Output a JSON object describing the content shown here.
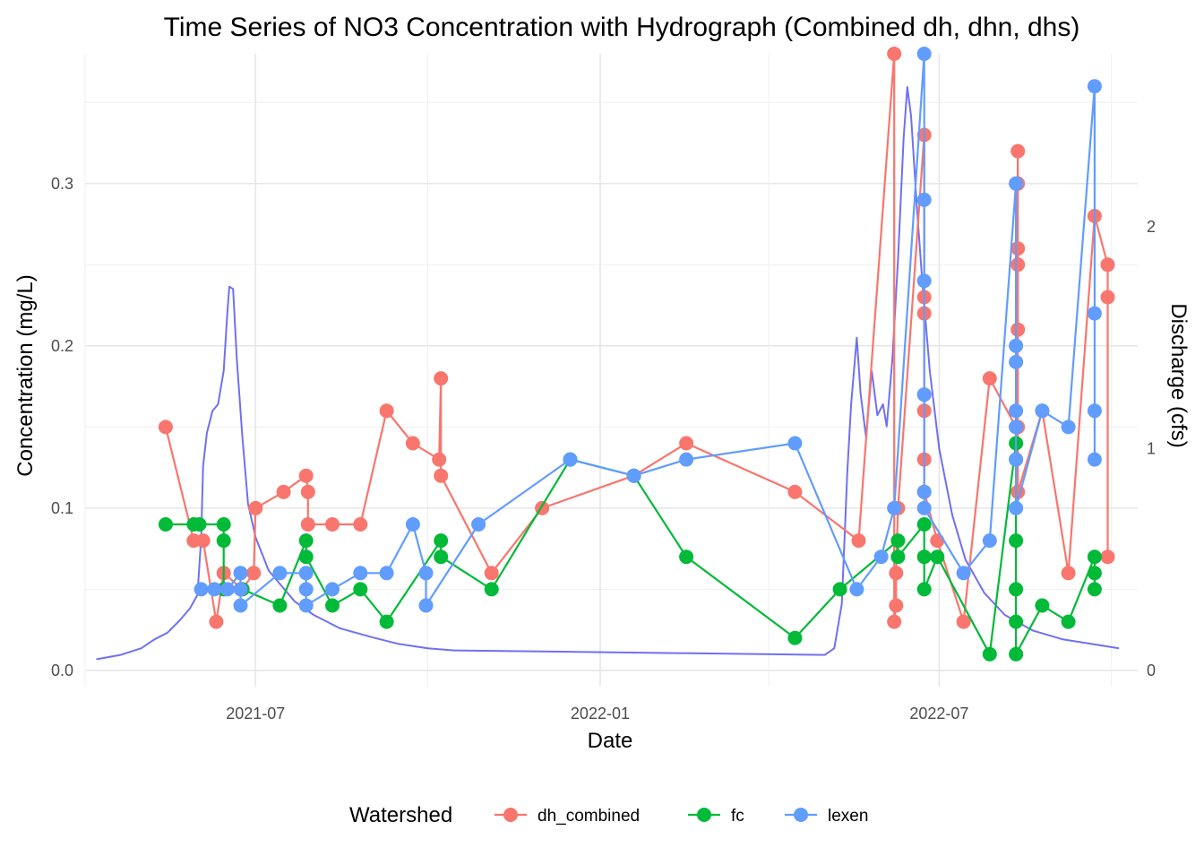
{
  "chart_data": {
    "type": "line",
    "title": "Time Series of NO3 Concentration with Hydrograph (Combined dh, dhn, dhs)",
    "xlabel": "Date",
    "ylabel": "Concentration (mg/L)",
    "y2label": "Discharge (cfs)",
    "x_ticks": [
      "2021-07",
      "2022-01",
      "2022-07"
    ],
    "xlim": [
      "2021-04-01",
      "2022-10-15"
    ],
    "ylim": [
      -0.01,
      0.38
    ],
    "y_ticks": [
      0.0,
      0.1,
      0.2,
      0.3
    ],
    "y_tick_labels": [
      "0.0",
      "0.1",
      "0.2",
      "0.3"
    ],
    "y2lim": [
      0,
      2.78
    ],
    "y2_ticks": [
      0,
      1,
      2
    ],
    "y2_tick_labels": [
      "0",
      "1",
      "2"
    ],
    "grid": true,
    "legend": {
      "title": "Watershed",
      "placement": "bottom"
    },
    "series": [
      {
        "name": "dh_combined",
        "color": "#F8766D",
        "points": [
          [
            "2021-05-14",
            0.15
          ],
          [
            "2021-05-29",
            0.08
          ],
          [
            "2021-06-03",
            0.08
          ],
          [
            "2021-06-10",
            0.03
          ],
          [
            "2021-06-14",
            0.06
          ],
          [
            "2021-06-24",
            0.05
          ],
          [
            "2021-06-30",
            0.06
          ],
          [
            "2021-07-01",
            0.1
          ],
          [
            "2021-07-16",
            0.11
          ],
          [
            "2021-07-28",
            0.12
          ],
          [
            "2021-07-29",
            0.11
          ],
          [
            "2021-07-29",
            0.09
          ],
          [
            "2021-08-11",
            0.09
          ],
          [
            "2021-08-26",
            0.09
          ],
          [
            "2021-09-09",
            0.16
          ],
          [
            "2021-09-23",
            0.14
          ],
          [
            "2021-10-07",
            0.13
          ],
          [
            "2021-10-08",
            0.18
          ],
          [
            "2021-10-08",
            0.12
          ],
          [
            "2021-11-04",
            0.06
          ],
          [
            "2021-12-01",
            0.1
          ],
          [
            "2022-01-19",
            0.12
          ],
          [
            "2022-02-16",
            0.14
          ],
          [
            "2022-04-15",
            0.11
          ],
          [
            "2022-05-19",
            0.08
          ],
          [
            "2022-06-07",
            0.38
          ],
          [
            "2022-06-07",
            0.03
          ],
          [
            "2022-06-08",
            0.04
          ],
          [
            "2022-06-08",
            0.06
          ],
          [
            "2022-06-09",
            0.1
          ],
          [
            "2022-06-23",
            0.33
          ],
          [
            "2022-06-23",
            0.23
          ],
          [
            "2022-06-23",
            0.22
          ],
          [
            "2022-06-23",
            0.17
          ],
          [
            "2022-06-23",
            0.16
          ],
          [
            "2022-06-23",
            0.13
          ],
          [
            "2022-06-23",
            0.11
          ],
          [
            "2022-06-30",
            0.08
          ],
          [
            "2022-07-14",
            0.03
          ],
          [
            "2022-07-28",
            0.18
          ],
          [
            "2022-08-11",
            0.15
          ],
          [
            "2022-08-12",
            0.32
          ],
          [
            "2022-08-12",
            0.3
          ],
          [
            "2022-08-12",
            0.26
          ],
          [
            "2022-08-12",
            0.25
          ],
          [
            "2022-08-12",
            0.21
          ],
          [
            "2022-08-12",
            0.15
          ],
          [
            "2022-08-12",
            0.11
          ],
          [
            "2022-08-25",
            0.16
          ],
          [
            "2022-09-08",
            0.06
          ],
          [
            "2022-09-22",
            0.28
          ],
          [
            "2022-09-29",
            0.25
          ],
          [
            "2022-09-29",
            0.23
          ],
          [
            "2022-09-29",
            0.07
          ]
        ]
      },
      {
        "name": "fc",
        "color": "#00BA38",
        "points": [
          [
            "2021-05-14",
            0.09
          ],
          [
            "2021-05-29",
            0.09
          ],
          [
            "2021-06-01",
            0.09
          ],
          [
            "2021-06-14",
            0.09
          ],
          [
            "2021-06-14",
            0.08
          ],
          [
            "2021-06-14",
            0.05
          ],
          [
            "2021-06-24",
            0.05
          ],
          [
            "2021-07-14",
            0.04
          ],
          [
            "2021-07-28",
            0.08
          ],
          [
            "2021-07-28",
            0.07
          ],
          [
            "2021-08-11",
            0.04
          ],
          [
            "2021-08-26",
            0.05
          ],
          [
            "2021-09-09",
            0.03
          ],
          [
            "2021-10-08",
            0.08
          ],
          [
            "2021-10-08",
            0.07
          ],
          [
            "2021-11-04",
            0.05
          ],
          [
            "2021-12-16",
            0.13
          ],
          [
            "2022-01-19",
            0.12
          ],
          [
            "2022-02-16",
            0.07
          ],
          [
            "2022-04-15",
            0.02
          ],
          [
            "2022-05-09",
            0.05
          ],
          [
            "2022-06-09",
            0.08
          ],
          [
            "2022-06-09",
            0.07
          ],
          [
            "2022-06-23",
            0.09
          ],
          [
            "2022-06-23",
            0.07
          ],
          [
            "2022-06-23",
            0.05
          ],
          [
            "2022-06-30",
            0.07
          ],
          [
            "2022-07-28",
            0.01
          ],
          [
            "2022-08-11",
            0.14
          ],
          [
            "2022-08-11",
            0.13
          ],
          [
            "2022-08-11",
            0.08
          ],
          [
            "2022-08-11",
            0.05
          ],
          [
            "2022-08-11",
            0.03
          ],
          [
            "2022-08-11",
            0.01
          ],
          [
            "2022-08-25",
            0.04
          ],
          [
            "2022-09-08",
            0.03
          ],
          [
            "2022-09-22",
            0.07
          ],
          [
            "2022-09-22",
            0.06
          ],
          [
            "2022-09-22",
            0.05
          ]
        ]
      },
      {
        "name": "lexen",
        "color": "#619CFF",
        "points": [
          [
            "2021-06-02",
            0.05
          ],
          [
            "2021-06-09",
            0.05
          ],
          [
            "2021-06-16",
            0.05
          ],
          [
            "2021-06-23",
            0.06
          ],
          [
            "2021-06-23",
            0.05
          ],
          [
            "2021-06-23",
            0.04
          ],
          [
            "2021-07-14",
            0.06
          ],
          [
            "2021-07-28",
            0.06
          ],
          [
            "2021-07-28",
            0.05
          ],
          [
            "2021-07-28",
            0.04
          ],
          [
            "2021-08-11",
            0.05
          ],
          [
            "2021-08-26",
            0.06
          ],
          [
            "2021-09-09",
            0.06
          ],
          [
            "2021-09-23",
            0.09
          ],
          [
            "2021-09-30",
            0.06
          ],
          [
            "2021-09-30",
            0.04
          ],
          [
            "2021-10-28",
            0.09
          ],
          [
            "2021-12-16",
            0.13
          ],
          [
            "2022-01-19",
            0.12
          ],
          [
            "2022-02-16",
            0.13
          ],
          [
            "2022-04-15",
            0.14
          ],
          [
            "2022-05-18",
            0.05
          ],
          [
            "2022-05-31",
            0.07
          ],
          [
            "2022-06-07",
            0.1
          ],
          [
            "2022-06-23",
            0.38
          ],
          [
            "2022-06-23",
            0.29
          ],
          [
            "2022-06-23",
            0.24
          ],
          [
            "2022-06-23",
            0.17
          ],
          [
            "2022-06-23",
            0.11
          ],
          [
            "2022-06-23",
            0.1
          ],
          [
            "2022-07-14",
            0.06
          ],
          [
            "2022-07-28",
            0.08
          ],
          [
            "2022-08-11",
            0.3
          ],
          [
            "2022-08-11",
            0.2
          ],
          [
            "2022-08-11",
            0.19
          ],
          [
            "2022-08-11",
            0.16
          ],
          [
            "2022-08-11",
            0.15
          ],
          [
            "2022-08-11",
            0.13
          ],
          [
            "2022-08-11",
            0.1
          ],
          [
            "2022-08-25",
            0.16
          ],
          [
            "2022-09-08",
            0.15
          ],
          [
            "2022-09-22",
            0.36
          ],
          [
            "2022-09-22",
            0.22
          ],
          [
            "2022-09-22",
            0.16
          ],
          [
            "2022-09-22",
            0.13
          ]
        ]
      }
    ],
    "hydrograph": {
      "name": "Discharge",
      "color": "#3333EE",
      "points": [
        [
          "2021-04-07",
          0.05
        ],
        [
          "2021-04-20",
          0.07
        ],
        [
          "2021-05-01",
          0.1
        ],
        [
          "2021-05-08",
          0.14
        ],
        [
          "2021-05-15",
          0.17
        ],
        [
          "2021-05-22",
          0.23
        ],
        [
          "2021-05-27",
          0.28
        ],
        [
          "2021-05-31",
          0.34
        ],
        [
          "2021-06-02",
          0.6
        ],
        [
          "2021-06-03",
          0.92
        ],
        [
          "2021-06-05",
          1.07
        ],
        [
          "2021-06-08",
          1.17
        ],
        [
          "2021-06-11",
          1.2
        ],
        [
          "2021-06-14",
          1.35
        ],
        [
          "2021-06-16",
          1.62
        ],
        [
          "2021-06-17",
          1.73
        ],
        [
          "2021-06-19",
          1.72
        ],
        [
          "2021-06-21",
          1.4
        ],
        [
          "2021-06-24",
          1.05
        ],
        [
          "2021-06-27",
          0.75
        ],
        [
          "2021-07-01",
          0.6
        ],
        [
          "2021-07-08",
          0.45
        ],
        [
          "2021-07-15",
          0.38
        ],
        [
          "2021-07-22",
          0.31
        ],
        [
          "2021-08-01",
          0.25
        ],
        [
          "2021-08-15",
          0.19
        ],
        [
          "2021-09-01",
          0.15
        ],
        [
          "2021-09-15",
          0.12
        ],
        [
          "2021-10-01",
          0.1
        ],
        [
          "2021-10-15",
          0.09
        ],
        [
          "2022-05-01",
          0.07
        ],
        [
          "2022-05-06",
          0.1
        ],
        [
          "2022-05-10",
          0.3
        ],
        [
          "2022-05-13",
          0.9
        ],
        [
          "2022-05-15",
          1.2
        ],
        [
          "2022-05-18",
          1.5
        ],
        [
          "2022-05-20",
          1.25
        ],
        [
          "2022-05-23",
          1.05
        ],
        [
          "2022-05-26",
          1.35
        ],
        [
          "2022-05-29",
          1.15
        ],
        [
          "2022-06-01",
          1.2
        ],
        [
          "2022-06-03",
          1.1
        ],
        [
          "2022-06-06",
          1.4
        ],
        [
          "2022-06-09",
          1.85
        ],
        [
          "2022-06-12",
          2.4
        ],
        [
          "2022-06-14",
          2.63
        ],
        [
          "2022-06-16",
          2.5
        ],
        [
          "2022-06-19",
          2.1
        ],
        [
          "2022-06-22",
          1.75
        ],
        [
          "2022-06-26",
          1.35
        ],
        [
          "2022-07-01",
          1.0
        ],
        [
          "2022-07-08",
          0.7
        ],
        [
          "2022-07-15",
          0.5
        ],
        [
          "2022-07-25",
          0.35
        ],
        [
          "2022-08-05",
          0.25
        ],
        [
          "2022-08-20",
          0.18
        ],
        [
          "2022-09-05",
          0.14
        ],
        [
          "2022-09-20",
          0.12
        ],
        [
          "2022-10-05",
          0.1
        ]
      ]
    }
  }
}
